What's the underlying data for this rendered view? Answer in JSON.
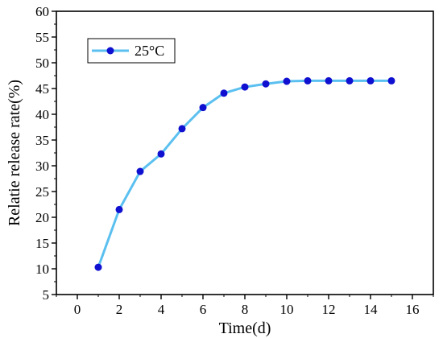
{
  "chart_data": {
    "type": "line",
    "title": "",
    "xlabel": "Time(d)",
    "ylabel": "Relatie release rate(%)",
    "xlim": [
      -1,
      17
    ],
    "ylim": [
      5,
      60
    ],
    "xticks": [
      0,
      2,
      4,
      6,
      8,
      10,
      12,
      14,
      16
    ],
    "yticks": [
      5,
      10,
      15,
      20,
      25,
      30,
      35,
      40,
      45,
      50,
      55,
      60
    ],
    "grid": false,
    "legend": "top-left",
    "series": [
      {
        "name": "25°C",
        "color": "#5bc0f0",
        "marker_color": "#1010d0",
        "x": [
          1,
          2,
          3,
          4,
          5,
          6,
          7,
          8,
          9,
          10,
          11,
          12,
          13,
          14,
          15
        ],
        "y": [
          10.3,
          21.5,
          28.9,
          32.3,
          37.2,
          41.3,
          44.1,
          45.3,
          45.9,
          46.4,
          46.5,
          46.5,
          46.5,
          46.5,
          46.5
        ]
      }
    ]
  }
}
